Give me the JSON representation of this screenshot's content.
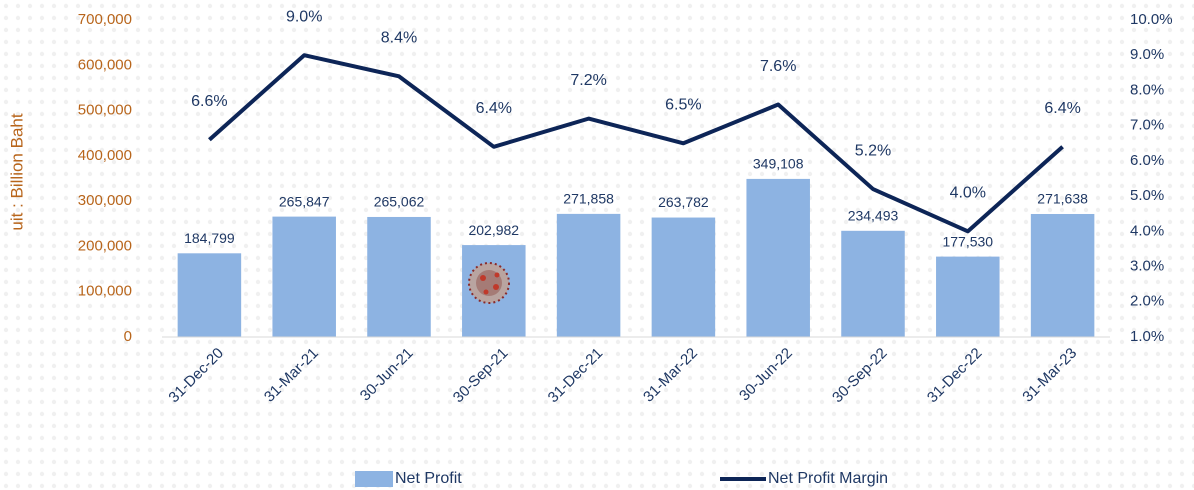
{
  "chart_data": {
    "type": "bar_line",
    "y_axis_title": "uit : Billion Baht",
    "categories": [
      "31-Dec-20",
      "31-Mar-21",
      "30-Jun-21",
      "30-Sep-21",
      "31-Dec-21",
      "31-Mar-22",
      "30-Jun-22",
      "30-Sep-22",
      "31-Dec-22",
      "31-Mar-23"
    ],
    "series": [
      {
        "name": "Net Profit",
        "color": "#8db3e2",
        "type": "bar",
        "values": [
          184799,
          265847,
          265062,
          202982,
          271858,
          263782,
          349108,
          234493,
          177530,
          271638
        ],
        "value_labels": [
          "184,799",
          "265,847",
          "265,062",
          "202,982",
          "271,858",
          "263,782",
          "349,108",
          "234,493",
          "177,530",
          "271,638"
        ]
      },
      {
        "name": "Net Profit Margin",
        "color": "#0d2557",
        "type": "line",
        "axis": "y2",
        "values": [
          6.6,
          9.0,
          8.4,
          6.4,
          7.2,
          6.5,
          7.6,
          5.2,
          4.0,
          6.4
        ],
        "value_labels": [
          "6.6%",
          "9.0%",
          "8.4%",
          "6.4%",
          "7.2%",
          "6.5%",
          "7.6%",
          "5.2%",
          "4.0%",
          "6.4%"
        ]
      }
    ],
    "ylim": [
      0,
      700000
    ],
    "yticks": [
      0,
      {
        "value": 100000,
        "label": "100,000"
      },
      {
        "value": 200000,
        "label": "200,000"
      },
      {
        "value": 300000,
        "label": "300,000"
      },
      {
        "value": 400000,
        "label": "400,000"
      },
      {
        "value": 500000,
        "label": "500,000"
      },
      {
        "value": 600000,
        "label": "600,000"
      },
      {
        "value": 700000,
        "label": "700,000"
      }
    ],
    "y2lim": [
      1,
      10
    ],
    "y2ticks": [
      {
        "value": 1,
        "label": "1.0%"
      },
      {
        "value": 2,
        "label": "2.0%"
      },
      {
        "value": 3,
        "label": "3.0%"
      },
      {
        "value": 4,
        "label": "4.0%"
      },
      {
        "value": 5,
        "label": "5.0%"
      },
      {
        "value": 6,
        "label": "6.0%"
      },
      {
        "value": 7,
        "label": "7.0%"
      },
      {
        "value": 8,
        "label": "8.0%"
      },
      {
        "value": 9,
        "label": "9.0%"
      },
      {
        "value": 10,
        "label": "10.0%"
      }
    ],
    "grid": false
  }
}
